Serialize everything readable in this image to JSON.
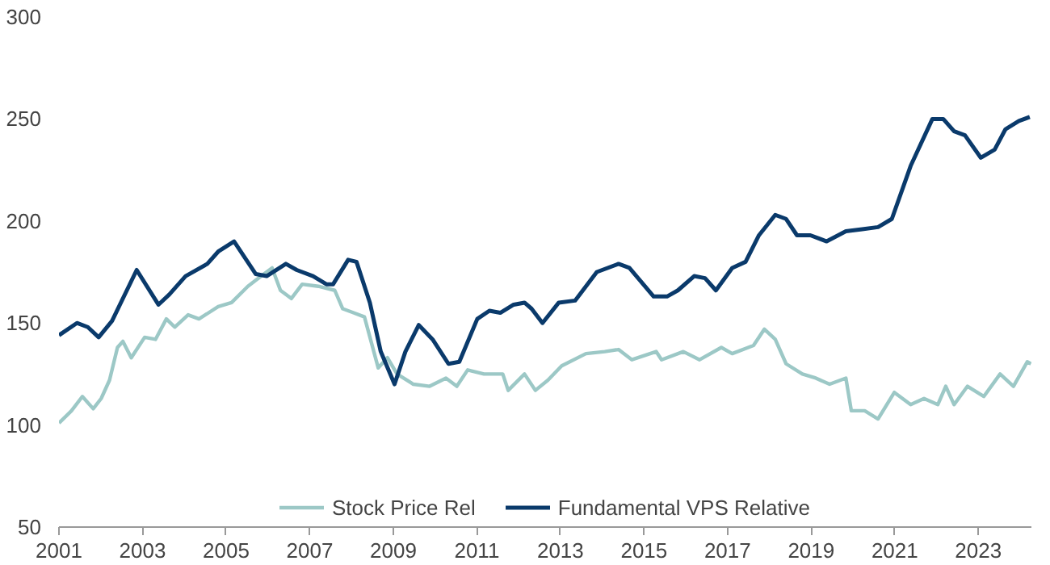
{
  "chart_data": {
    "type": "line",
    "xlim": [
      2001,
      2024.27
    ],
    "ylim": [
      50,
      300
    ],
    "xticks": [
      2001,
      2003,
      2005,
      2007,
      2009,
      2011,
      2013,
      2015,
      2017,
      2019,
      2021,
      2023
    ],
    "yticks": [
      50,
      100,
      150,
      200,
      250,
      300
    ],
    "grid": false,
    "legend": "bottom",
    "marker": "none",
    "line_style": "solid",
    "series": [
      {
        "name": "Stock Price Rel",
        "color": "#9cc8c6",
        "x": [
          2001.0,
          2001.3,
          2001.56,
          2001.82,
          2002.01,
          2002.21,
          2002.4,
          2002.53,
          2002.73,
          2003.05,
          2003.31,
          2003.57,
          2003.77,
          2004.09,
          2004.35,
          2004.81,
          2005.13,
          2005.52,
          2005.84,
          2006.1,
          2006.3,
          2006.56,
          2006.82,
          2007.21,
          2007.6,
          2007.79,
          2008.05,
          2008.31,
          2008.64,
          2008.86,
          2009.09,
          2009.48,
          2009.87,
          2010.26,
          2010.52,
          2010.78,
          2011.17,
          2011.62,
          2011.75,
          2012.14,
          2012.4,
          2012.7,
          2013.03,
          2013.61,
          2014.06,
          2014.39,
          2014.71,
          2015.29,
          2015.42,
          2015.94,
          2016.33,
          2016.85,
          2017.11,
          2017.62,
          2017.88,
          2018.14,
          2018.4,
          2018.79,
          2019.11,
          2019.44,
          2019.83,
          2019.96,
          2020.28,
          2020.6,
          2020.99,
          2021.38,
          2021.7,
          2022.03,
          2022.22,
          2022.42,
          2022.74,
          2023.13,
          2023.52,
          2023.84,
          2024.17,
          2024.26
        ],
        "values": [
          101,
          107,
          114,
          108,
          113,
          122,
          138,
          141,
          133,
          143,
          142,
          152,
          148,
          154,
          152,
          158,
          160,
          168,
          173,
          177,
          166,
          162,
          169,
          168,
          166,
          157,
          155,
          153,
          128,
          133,
          125,
          120,
          119,
          123,
          119,
          127,
          125,
          125,
          117,
          125,
          117,
          122,
          129,
          135,
          136,
          137,
          132,
          136,
          132,
          136,
          132,
          138,
          135,
          139,
          147,
          142,
          130,
          125,
          123,
          120,
          123,
          107,
          107,
          103,
          116,
          110,
          113,
          110,
          119,
          110,
          119,
          114,
          125,
          119,
          131,
          130
        ]
      },
      {
        "name": "Fundamental VPS Relative",
        "color": "#0a3a6b",
        "x": [
          2001.0,
          2001.43,
          2001.69,
          2001.95,
          2002.27,
          2002.86,
          2003.38,
          2003.64,
          2004.03,
          2004.55,
          2004.81,
          2005.19,
          2005.71,
          2005.97,
          2006.43,
          2006.69,
          2007.08,
          2007.4,
          2007.56,
          2007.92,
          2008.12,
          2008.44,
          2008.7,
          2009.03,
          2009.29,
          2009.61,
          2009.94,
          2010.32,
          2010.58,
          2011.01,
          2011.3,
          2011.56,
          2011.88,
          2012.14,
          2012.31,
          2012.57,
          2012.96,
          2013.35,
          2013.87,
          2014.39,
          2014.65,
          2015.23,
          2015.55,
          2015.81,
          2016.2,
          2016.46,
          2016.72,
          2017.11,
          2017.43,
          2017.75,
          2018.14,
          2018.4,
          2018.66,
          2018.98,
          2019.37,
          2019.83,
          2020.22,
          2020.6,
          2020.93,
          2021.38,
          2021.9,
          2022.16,
          2022.42,
          2022.68,
          2023.06,
          2023.39,
          2023.65,
          2023.97,
          2024.23
        ],
        "values": [
          144,
          150,
          148,
          143,
          151,
          176,
          159,
          164,
          173,
          179,
          185,
          190,
          174,
          173,
          179,
          176,
          173,
          169,
          169,
          181,
          180,
          160,
          136,
          120,
          136,
          149,
          142,
          130,
          131,
          152,
          156,
          155,
          159,
          160,
          157,
          150,
          160,
          161,
          175,
          179,
          177,
          163,
          163,
          166,
          173,
          172,
          166,
          177,
          180,
          193,
          203,
          201,
          193,
          193,
          190,
          195,
          196,
          197,
          201,
          227,
          250,
          250,
          244,
          242,
          231,
          235,
          245,
          249,
          251
        ]
      }
    ]
  }
}
